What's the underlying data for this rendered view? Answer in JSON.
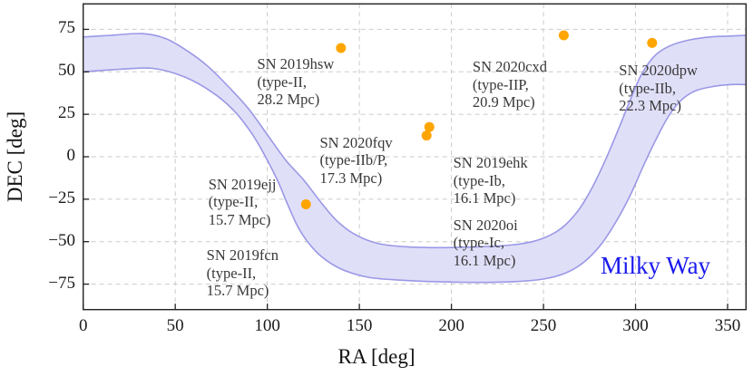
{
  "chart_data": {
    "type": "scatter",
    "title": "",
    "xlabel": "RA [deg]",
    "ylabel": "DEC [deg]",
    "xlim": [
      0,
      360
    ],
    "ylim": [
      -90,
      90
    ],
    "grid": true,
    "xticks": [
      0,
      50,
      100,
      150,
      200,
      250,
      300,
      350
    ],
    "xtick_labels": [
      "0",
      "50",
      "100",
      "150",
      "200",
      "250",
      "300",
      "350"
    ],
    "yticks": [
      -75,
      -50,
      -25,
      0,
      25,
      50,
      75
    ],
    "ytick_labels": [
      "−75",
      "−50",
      "−25",
      "0",
      "25",
      "50",
      "75"
    ],
    "points": [
      {
        "label": "SN 2019hsw",
        "ra": 140,
        "dec": 64
      },
      {
        "label": "SN 2020cxd",
        "ra": 261,
        "dec": 71.5
      },
      {
        "label": "SN 2020dpw",
        "ra": 309,
        "dec": 67
      },
      {
        "label": "SN 2020fqv",
        "ra": 188,
        "dec": 17.5
      },
      {
        "label": "SN 2019ehk / SN 2020oi",
        "ra": 186.5,
        "dec": 12.5
      },
      {
        "label": "SN 2019ejj / SN 2019fcn",
        "ra": 121,
        "dec": -28
      }
    ],
    "annotations": [
      {
        "lines": [
          "SN 2019hsw",
          "(type-II,",
          "28.2 Mpc)"
        ],
        "ra": 94.5,
        "dec": 59.5
      },
      {
        "lines": [
          "SN 2020cxd",
          "(type-IIP,",
          "20.9 Mpc)"
        ],
        "ra": 211.5,
        "dec": 58
      },
      {
        "lines": [
          "SN 2020dpw",
          "(type-IIb,",
          "22.3 Mpc)"
        ],
        "ra": 291,
        "dec": 56
      },
      {
        "lines": [
          "SN 2020fqv",
          "(type-IIb/P,",
          "17.3 Mpc)"
        ],
        "ra": 128.5,
        "dec": 13.5
      },
      {
        "lines": [
          "SN 2019ehk",
          "(type-Ib,",
          "16.1 Mpc)"
        ],
        "ra": 201,
        "dec": 1.5
      },
      {
        "lines": [
          "SN 2019ejj",
          "(type-II,",
          "15.7 Mpc)"
        ],
        "ra": 68,
        "dec": -11
      },
      {
        "lines": [
          "SN 2019fcn",
          "(type-II,",
          "15.7 Mpc)"
        ],
        "ra": 67,
        "dec": -53
      },
      {
        "lines": [
          "SN 2020oi",
          "(type-Ic,",
          "16.1 Mpc)"
        ],
        "ra": 201,
        "dec": -35
      }
    ],
    "band": {
      "label": "Milky Way",
      "label_ra": 281,
      "label_dec": -56,
      "upper": [
        [
          0,
          70.5
        ],
        [
          15,
          71.5
        ],
        [
          32,
          72.5
        ],
        [
          45,
          69.5
        ],
        [
          57,
          62
        ],
        [
          68,
          53
        ],
        [
          80,
          40
        ],
        [
          90,
          28
        ],
        [
          100,
          13
        ],
        [
          110,
          -2
        ],
        [
          120,
          -14
        ],
        [
          130,
          -28
        ],
        [
          138,
          -38
        ],
        [
          148,
          -46
        ],
        [
          160,
          -51
        ],
        [
          175,
          -53
        ],
        [
          195,
          -53.5
        ],
        [
          215,
          -53
        ],
        [
          232,
          -52
        ],
        [
          244,
          -50
        ],
        [
          254,
          -46
        ],
        [
          262,
          -40
        ],
        [
          270,
          -30
        ],
        [
          277,
          -17
        ],
        [
          284,
          -1
        ],
        [
          291,
          17
        ],
        [
          297,
          33
        ],
        [
          303,
          48
        ],
        [
          310,
          59
        ],
        [
          318,
          65
        ],
        [
          328,
          68.5
        ],
        [
          340,
          70.5
        ],
        [
          350,
          71
        ],
        [
          360,
          71.5
        ]
      ],
      "lower": [
        [
          0,
          50
        ],
        [
          20,
          51.5
        ],
        [
          38,
          52
        ],
        [
          55,
          47
        ],
        [
          70,
          38
        ],
        [
          82,
          27
        ],
        [
          92,
          13
        ],
        [
          100,
          -2
        ],
        [
          106,
          -15
        ],
        [
          111,
          -28
        ],
        [
          117,
          -42
        ],
        [
          124,
          -53
        ],
        [
          132,
          -61
        ],
        [
          142,
          -67
        ],
        [
          155,
          -71
        ],
        [
          170,
          -72.5
        ],
        [
          190,
          -73.5
        ],
        [
          215,
          -74
        ],
        [
          235,
          -73.5
        ],
        [
          250,
          -72
        ],
        [
          262,
          -68.5
        ],
        [
          272,
          -62
        ],
        [
          281,
          -52
        ],
        [
          289,
          -39
        ],
        [
          297,
          -23
        ],
        [
          304,
          -6
        ],
        [
          311,
          10
        ],
        [
          318,
          24
        ],
        [
          325,
          33.5
        ],
        [
          333,
          39
        ],
        [
          343,
          41.5
        ],
        [
          352,
          42.5
        ],
        [
          360,
          42.5
        ]
      ]
    },
    "colors": {
      "point": "#FFA500",
      "band_fill": "#E0DFF8",
      "band_edge": "#9A98E6",
      "milky_way_label": "#1A1AEE",
      "grid": "#CBCBCB",
      "axis": "#222222",
      "annotation": "#383838"
    }
  }
}
